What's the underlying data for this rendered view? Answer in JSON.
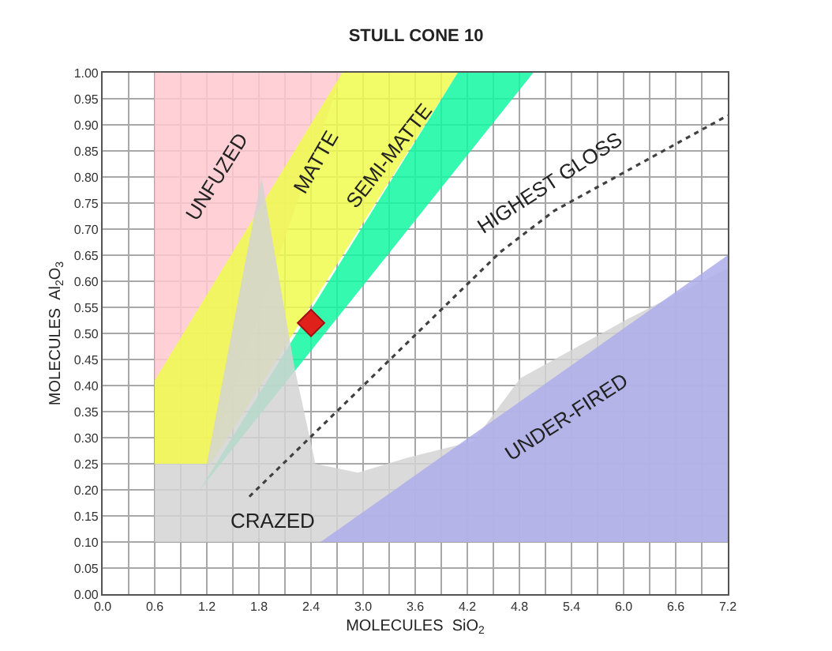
{
  "chart_data": {
    "type": "area",
    "title": "STULL CONE 10",
    "xlabel": "MOLECULES  SiO$_{2}$",
    "ylabel": "MOLECULES  Al$_{2}$O$_{3}$",
    "series": [
      {
        "name": "UNFUZED",
        "color": "#ffc9cf",
        "x": [
          0.6,
          0.6,
          2.76,
          1.2
        ],
        "values": [
          0.25,
          1.0,
          1.0,
          0.25
        ]
      },
      {
        "name": "MATTE",
        "color": "#eefb4e",
        "x": [
          0.6,
          0.6,
          2.76,
          4.09,
          1.25
        ],
        "values": [
          0.25,
          0.41,
          1.0,
          1.0,
          0.25
        ]
      },
      {
        "name": "SEMI-MATTE",
        "color": "#12f8a0",
        "x": [
          1.12,
          4.09,
          4.96
        ],
        "values": [
          0.2,
          1.0,
          1.0
        ]
      },
      {
        "name": "CRAZED",
        "color": "#d4d4d4",
        "x": [
          0.6,
          0.6,
          1.2,
          1.83,
          2.21,
          2.45,
          2.94,
          3.54,
          4.27,
          4.81,
          6.03,
          7.2,
          7.2
        ],
        "values": [
          0.1,
          0.25,
          0.25,
          0.8,
          0.435,
          0.25,
          0.233,
          0.263,
          0.293,
          0.414,
          0.526,
          0.625,
          0.1
        ]
      },
      {
        "name": "UNDER-FIRED",
        "color": "#adadeb",
        "x": [
          2.51,
          7.2,
          7.2
        ],
        "values": [
          0.1,
          0.1,
          0.65
        ]
      },
      {
        "type": "line",
        "name": "HIGHEST GLOSS",
        "color": "#404040",
        "line_style": "dotted",
        "marker": "none",
        "x": [
          1.69,
          4.58,
          5.2,
          7.2
        ],
        "values": [
          0.187,
          0.656,
          0.735,
          0.918
        ]
      },
      {
        "type": "scatter",
        "color": "#e0201b",
        "marker": "diamond",
        "x": [
          2.4
        ],
        "values": [
          0.52
        ]
      }
    ],
    "xlim": [
      0,
      7.2
    ],
    "xticks": [
      {
        "value": 0,
        "label": "0.0"
      },
      {
        "value": 0.3,
        "label": null
      },
      {
        "value": 0.6,
        "label": "0.6"
      },
      {
        "value": 0.9,
        "label": null
      },
      {
        "value": 1.2,
        "label": "1.2"
      },
      {
        "value": 1.5,
        "label": null
      },
      {
        "value": 1.8,
        "label": "1.8"
      },
      {
        "value": 2.1,
        "label": null
      },
      {
        "value": 2.4,
        "label": "2.4"
      },
      {
        "value": 2.7,
        "label": null
      },
      {
        "value": 3.0,
        "label": "3.0"
      },
      {
        "value": 3.3,
        "label": null
      },
      {
        "value": 3.6,
        "label": "3.6"
      },
      {
        "value": 3.9,
        "label": null
      },
      {
        "value": 4.2,
        "label": "4.2"
      },
      {
        "value": 4.5,
        "label": null
      },
      {
        "value": 4.8,
        "label": "4.8"
      },
      {
        "value": 5.1,
        "label": null
      },
      {
        "value": 5.4,
        "label": "5.4"
      },
      {
        "value": 5.7,
        "label": null
      },
      {
        "value": 6.0,
        "label": "6.0"
      },
      {
        "value": 6.3,
        "label": null
      },
      {
        "value": 6.6,
        "label": "6.6"
      },
      {
        "value": 6.9,
        "label": null
      },
      {
        "value": 7.2,
        "label": "7.2"
      }
    ],
    "ylim": [
      0,
      1.0
    ],
    "yticks": [
      {
        "value": 0,
        "label": "0.00"
      },
      0.05,
      {
        "value": 0.1,
        "label": "0.10"
      },
      0.15,
      {
        "value": 0.2,
        "label": "0.20"
      },
      0.25,
      {
        "value": 0.3,
        "label": "0.30"
      },
      0.35,
      {
        "value": 0.4,
        "label": "0.40"
      },
      0.45,
      {
        "value": 0.5,
        "label": "0.50"
      },
      0.55,
      {
        "value": 0.6,
        "label": "0.60"
      },
      0.65,
      {
        "value": 0.7,
        "label": "0.70"
      },
      0.75,
      {
        "value": 0.8,
        "label": "0.80"
      },
      0.85,
      {
        "value": 0.9,
        "label": "0.90"
      },
      0.95,
      {
        "value": 1.0,
        "label": "1.00"
      }
    ],
    "grid": true,
    "legend": false
  }
}
